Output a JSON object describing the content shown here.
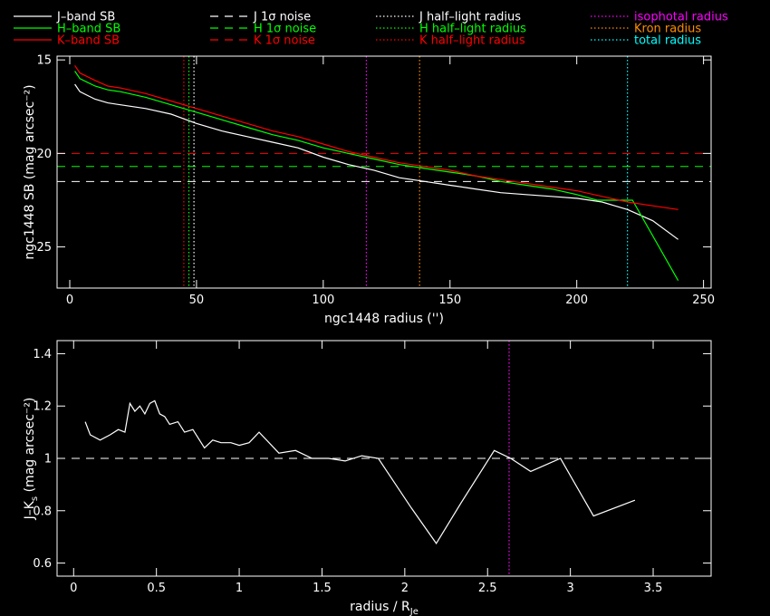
{
  "legend": [
    {
      "label": "J–band SB",
      "color": "#ffffff",
      "dash": "solid"
    },
    {
      "label": "H–band SB",
      "color": "#00ff00",
      "dash": "solid"
    },
    {
      "label": "K–band SB",
      "color": "#ff0000",
      "dash": "solid"
    },
    {
      "label": "J 1σ noise",
      "color": "#ffffff",
      "dash": "dashed"
    },
    {
      "label": "H 1σ noise",
      "color": "#00ff00",
      "dash": "dashed"
    },
    {
      "label": "K 1σ noise",
      "color": "#ff0000",
      "dash": "dashed"
    },
    {
      "label": "J half–light radius",
      "color": "#ffffff",
      "dash": "dotted"
    },
    {
      "label": "H half–light radius",
      "color": "#00ff00",
      "dash": "dotted"
    },
    {
      "label": "K half–light radius",
      "color": "#ff0000",
      "dash": "dotted"
    },
    {
      "label": "isophotal radius",
      "color": "#ff00ff",
      "dash": "dotted"
    },
    {
      "label": "Kron radius",
      "color": "#ff8c00",
      "dash": "dotted"
    },
    {
      "label": "total radius",
      "color": "#00ffff",
      "dash": "dotted"
    }
  ],
  "chart_data": [
    {
      "type": "line",
      "xlabel": "ngc1448 radius ('')",
      "ylabel": "ngc1448 SB (mag arcsec⁻²)",
      "xlim": [
        -5,
        253
      ],
      "ylim": [
        27.2,
        14.8
      ],
      "y_inverted": true,
      "xticks": [
        0,
        50,
        100,
        150,
        200,
        250
      ],
      "yticks": [
        15,
        20,
        25
      ],
      "grid": false,
      "series": [
        {
          "name": "J–band SB",
          "color": "#ffffff",
          "x": [
            2,
            4,
            7,
            10,
            15,
            20,
            30,
            40,
            50,
            60,
            70,
            80,
            90,
            100,
            110,
            120,
            130,
            140,
            150,
            160,
            170,
            180,
            190,
            200,
            210,
            215,
            220,
            230,
            240
          ],
          "y": [
            16.3,
            16.7,
            16.9,
            17.1,
            17.3,
            17.4,
            17.6,
            17.9,
            18.4,
            18.8,
            19.1,
            19.4,
            19.7,
            20.2,
            20.6,
            20.9,
            21.3,
            21.5,
            21.7,
            21.9,
            22.1,
            22.2,
            22.3,
            22.4,
            22.6,
            22.8,
            23.0,
            23.6,
            24.6
          ]
        },
        {
          "name": "H–band SB",
          "color": "#00ff00",
          "x": [
            2,
            4,
            7,
            10,
            15,
            20,
            30,
            40,
            50,
            60,
            70,
            80,
            90,
            100,
            110,
            120,
            130,
            140,
            150,
            160,
            170,
            180,
            190,
            200,
            208,
            222,
            240
          ],
          "y": [
            15.6,
            16.0,
            16.2,
            16.4,
            16.6,
            16.7,
            17.0,
            17.4,
            17.8,
            18.2,
            18.6,
            19.0,
            19.3,
            19.7,
            20.0,
            20.3,
            20.6,
            20.8,
            21.0,
            21.2,
            21.5,
            21.7,
            21.9,
            22.2,
            22.5,
            22.5,
            26.8
          ]
        },
        {
          "name": "K–band SB",
          "color": "#ff0000",
          "x": [
            2,
            4,
            7,
            10,
            15,
            20,
            30,
            40,
            50,
            60,
            70,
            80,
            90,
            100,
            110,
            120,
            130,
            140,
            150,
            160,
            170,
            180,
            190,
            200,
            210,
            220,
            230,
            240
          ],
          "y": [
            15.3,
            15.7,
            15.9,
            16.1,
            16.4,
            16.5,
            16.8,
            17.2,
            17.6,
            18.0,
            18.4,
            18.8,
            19.1,
            19.5,
            19.9,
            20.2,
            20.5,
            20.7,
            20.9,
            21.2,
            21.4,
            21.6,
            21.8,
            22.0,
            22.3,
            22.6,
            22.8,
            23.0
          ]
        }
      ],
      "hlines": [
        {
          "name": "J 1σ noise",
          "y": 21.5,
          "color": "#ffffff",
          "dash": "dashed"
        },
        {
          "name": "H 1σ noise",
          "y": 20.7,
          "color": "#00ff00",
          "dash": "dashed"
        },
        {
          "name": "K 1σ noise",
          "y": 20.0,
          "color": "#ff0000",
          "dash": "dashed"
        }
      ],
      "vlines": [
        {
          "name": "J half–light radius",
          "x": 49,
          "color": "#ffffff",
          "dash": "dotted"
        },
        {
          "name": "H half–light radius",
          "x": 47,
          "color": "#00ff00",
          "dash": "dotted"
        },
        {
          "name": "K half–light radius",
          "x": 45,
          "color": "#ff0000",
          "dash": "dotted"
        },
        {
          "name": "isophotal radius",
          "x": 117,
          "color": "#ff00ff",
          "dash": "dotted"
        },
        {
          "name": "Kron radius",
          "x": 138,
          "color": "#ff8c00",
          "dash": "dotted"
        },
        {
          "name": "total radius",
          "x": 220,
          "color": "#00ffff",
          "dash": "dotted"
        }
      ]
    },
    {
      "type": "line",
      "xlabel": "radius / R",
      "xlabel_sub": "Je",
      "ylabel": "J–K",
      "ylabel_sub": "s",
      "ylabel_tail": " (mag arcsec⁻²)",
      "xlim": [
        -0.1,
        3.85
      ],
      "ylim": [
        0.55,
        1.45
      ],
      "y_inverted": false,
      "xticks": [
        0,
        0.5,
        1,
        1.5,
        2,
        2.5,
        3,
        3.5
      ],
      "xtick_labels": [
        "0",
        "0.5",
        "1",
        "1.5",
        "2",
        "2.5",
        "3",
        "3.5"
      ],
      "yticks": [
        0.6,
        0.8,
        1,
        1.2,
        1.4
      ],
      "ytick_labels": [
        "0.6",
        "0.8",
        "1",
        "1.2",
        "1.4"
      ],
      "grid": false,
      "series": [
        {
          "name": "J–K",
          "color": "#ffffff",
          "x": [
            0.07,
            0.1,
            0.16,
            0.22,
            0.27,
            0.31,
            0.34,
            0.37,
            0.4,
            0.43,
            0.46,
            0.49,
            0.52,
            0.55,
            0.58,
            0.63,
            0.67,
            0.72,
            0.79,
            0.84,
            0.89,
            0.95,
            1.0,
            1.06,
            1.12,
            1.24,
            1.34,
            1.44,
            1.54,
            1.64,
            1.74,
            1.84,
            2.04,
            2.19,
            2.34,
            2.54,
            2.64,
            2.76,
            2.94,
            3.14,
            3.39
          ],
          "y": [
            1.14,
            1.09,
            1.07,
            1.09,
            1.11,
            1.1,
            1.21,
            1.18,
            1.2,
            1.17,
            1.21,
            1.22,
            1.17,
            1.16,
            1.13,
            1.14,
            1.1,
            1.11,
            1.04,
            1.07,
            1.06,
            1.06,
            1.05,
            1.06,
            1.1,
            1.02,
            1.03,
            1.0,
            1.0,
            0.99,
            1.01,
            1.0,
            0.81,
            0.675,
            0.83,
            1.03,
            1.0,
            0.95,
            1.0,
            0.78,
            0.84
          ]
        }
      ],
      "hlines": [
        {
          "name": "reference",
          "y": 1.0,
          "color": "#ffffff",
          "dash": "dashed"
        }
      ],
      "vlines": [
        {
          "name": "isophotal radius",
          "x": 2.63,
          "color": "#ff00ff",
          "dash": "dotted"
        }
      ]
    }
  ]
}
